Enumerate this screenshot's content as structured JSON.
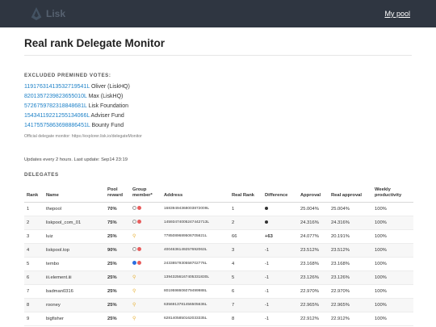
{
  "header": {
    "logo_text": "Lisk",
    "my_pool_label": "My pool"
  },
  "page": {
    "title": "Real rank Delegate Monitor"
  },
  "premined": {
    "heading": "EXCLUDED PREMINED VOTES:",
    "items": [
      {
        "address": "11917631413532719541L",
        "owner": "Oliver (LiskHQ)"
      },
      {
        "address": "8201357239823655010L",
        "owner": "Max (LiskHQ)"
      },
      {
        "address": "5726759782318848681L",
        "owner": "Lisk Foundation"
      },
      {
        "address": "15434119221255134066L",
        "owner": "Adviser Fund"
      },
      {
        "address": "14175575863698886451L",
        "owner": "Bounty Fund"
      }
    ],
    "official_note": "Official delegate monitor: https://explorer.lisk.io/delegateMonitor"
  },
  "updates": "Updates every 2 hours. Last update: Sep14 23:19",
  "delegates": {
    "heading": "DELEGATES",
    "columns": [
      "Rank",
      "Name",
      "Pool reward",
      "Group member*",
      "Address",
      "Real Rank",
      "Difference",
      "Approval",
      "Real approval",
      "Weekly productivity"
    ],
    "rows": [
      {
        "rank": "1",
        "name": "thepool",
        "reward": "70%",
        "group": "white-red",
        "address": "16839494368003872009L",
        "real_rank": "1",
        "difference": "dot",
        "approval": "25.004%",
        "real_approval": "25.004%",
        "productivity": "100%"
      },
      {
        "rank": "2",
        "name": "liskpool_com_01",
        "reward": "75%",
        "group": "white-red",
        "address": "14593474005247442713L",
        "real_rank": "2",
        "difference": "dot",
        "approval": "24.316%",
        "real_approval": "24.316%",
        "productivity": "100%"
      },
      {
        "rank": "3",
        "name": "luiz",
        "reward": "25%",
        "group": "bulb",
        "address": "7785089689506705621L",
        "real_rank": "66",
        "difference": "+63",
        "approval": "24.077%",
        "real_approval": "20.191%",
        "productivity": "100%"
      },
      {
        "rank": "4",
        "name": "liskpool.top",
        "reward": "90%",
        "group": "white-red",
        "address": "4004636149257692063L",
        "real_rank": "3",
        "difference": "-1",
        "approval": "23.512%",
        "real_approval": "23.512%",
        "productivity": "100%"
      },
      {
        "rank": "5",
        "name": "tembo",
        "reward": "25%",
        "group": "blue-red",
        "address": "2433857930558702776L",
        "real_rank": "4",
        "difference": "-1",
        "approval": "23.168%",
        "real_approval": "23.168%",
        "productivity": "100%"
      },
      {
        "rank": "6",
        "name": "iii.element.iii",
        "reward": "25%",
        "group": "bulb",
        "address": "13943256167405331830L",
        "real_rank": "5",
        "difference": "-1",
        "approval": "23.126%",
        "real_approval": "23.126%",
        "productivity": "100%"
      },
      {
        "rank": "7",
        "name": "badman0316",
        "reward": "25%",
        "group": "bulb",
        "address": "8019598606079499988L",
        "real_rank": "6",
        "difference": "-1",
        "approval": "22.970%",
        "real_approval": "22.970%",
        "productivity": "100%"
      },
      {
        "rank": "8",
        "name": "rooney",
        "reward": "25%",
        "group": "bulb",
        "address": "6356913781456505636L",
        "real_rank": "7",
        "difference": "-1",
        "approval": "22.965%",
        "real_approval": "22.965%",
        "productivity": "100%"
      },
      {
        "rank": "9",
        "name": "bigfisher",
        "reward": "25%",
        "group": "bulb",
        "address": "6281405850162033335L",
        "real_rank": "8",
        "difference": "-1",
        "approval": "22.912%",
        "real_approval": "22.912%",
        "productivity": "100%"
      }
    ]
  },
  "colors": {
    "topbar": "#2f3641",
    "link": "#1a7fc7",
    "reward": "#2e9e2e",
    "diff_up": "#e03a3a"
  },
  "icons": {
    "logo": "lisk-logo-icon",
    "bulb": "lightbulb-icon",
    "group": "group-member-icon"
  }
}
